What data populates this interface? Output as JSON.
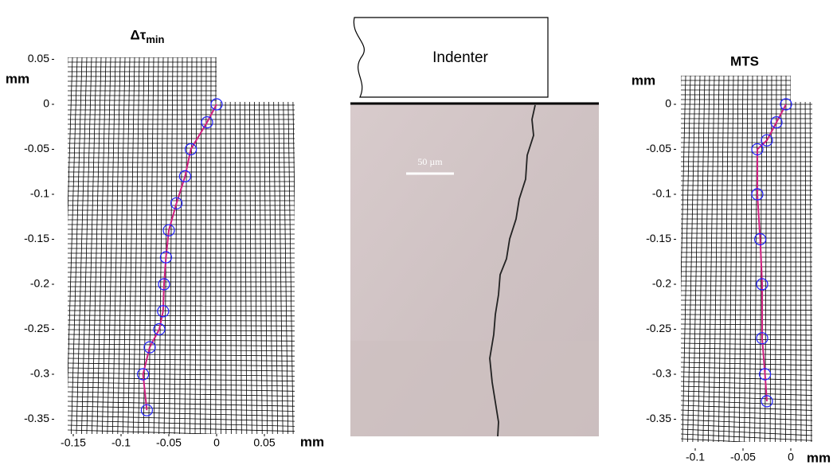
{
  "chart_data": [
    {
      "type": "line",
      "title": "Δτ",
      "title_subscript": "min",
      "xlabel": "mm",
      "ylabel": "mm",
      "x": [
        0.0,
        -0.01,
        -0.027,
        -0.033,
        -0.042,
        -0.05,
        -0.053,
        -0.055,
        -0.056,
        -0.06,
        -0.07,
        -0.077,
        -0.073
      ],
      "values": [
        0,
        -0.02,
        -0.05,
        -0.08,
        -0.11,
        -0.14,
        -0.17,
        -0.2,
        -0.23,
        -0.25,
        -0.27,
        -0.3,
        -0.34
      ],
      "color": "#2020ff",
      "xlim": [
        -0.17,
        0.07
      ],
      "ylim": [
        -0.36,
        0.05
      ],
      "xticks": [
        -0.15,
        -0.1,
        -0.05,
        0,
        0.05
      ],
      "yticks": [
        0.05,
        0,
        -0.05,
        -0.1,
        -0.15,
        -0.2,
        -0.25,
        -0.3,
        -0.35
      ]
    },
    {
      "type": "line",
      "title": "MTS",
      "xlabel": "mm",
      "ylabel": "mm",
      "x": [
        -0.005,
        -0.015,
        -0.025,
        -0.035,
        -0.035,
        -0.032,
        -0.03,
        -0.03,
        -0.027,
        -0.025
      ],
      "values": [
        0,
        -0.02,
        -0.04,
        -0.05,
        -0.1,
        -0.15,
        -0.2,
        -0.26,
        -0.3,
        -0.33
      ],
      "color": "#2020ff",
      "xlim": [
        -0.12,
        0.03
      ],
      "ylim": [
        -0.36,
        0.03
      ],
      "xticks": [
        -0.1,
        -0.05,
        0
      ],
      "yticks": [
        0,
        -0.05,
        -0.1,
        -0.15,
        -0.2,
        -0.25,
        -0.3,
        -0.35
      ]
    }
  ],
  "photo": {
    "indenter_label": "Indenter",
    "scale_label": "50 µm"
  }
}
